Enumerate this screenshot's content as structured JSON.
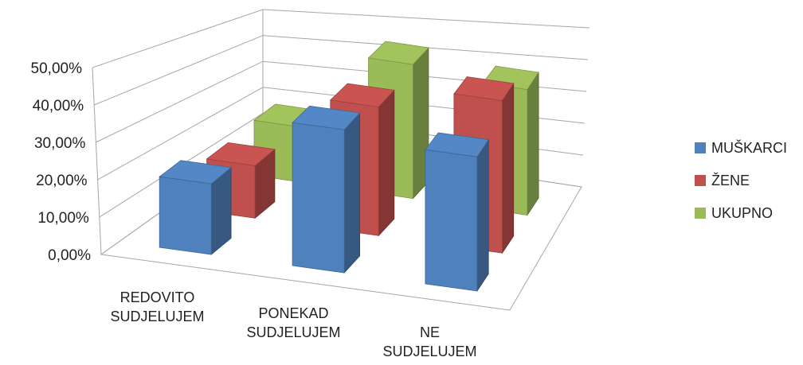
{
  "chart_data": {
    "type": "bar",
    "categories": [
      "REDOVITO SUDJELUJEM",
      "PONEKAD SUDJELUJEM",
      "NE SUDJELUJEM"
    ],
    "series": [
      {
        "name": "MUŠKARCI",
        "values": [
          20.0,
          40.5,
          38.0
        ],
        "color": "#4F81BD"
      },
      {
        "name": "ŽENE",
        "values": [
          16.5,
          40.5,
          48.0
        ],
        "color": "#C0504D"
      },
      {
        "name": "UKUPNO",
        "values": [
          19.5,
          47.5,
          44.5
        ],
        "color": "#9BBB59"
      }
    ],
    "y_ticks": [
      "0,00%",
      "10,00%",
      "20,00%",
      "30,00%",
      "40,00%",
      "50,00%"
    ],
    "ylim": [
      0,
      50
    ],
    "grid": true,
    "legend_position": "right",
    "render": "3d-column"
  }
}
